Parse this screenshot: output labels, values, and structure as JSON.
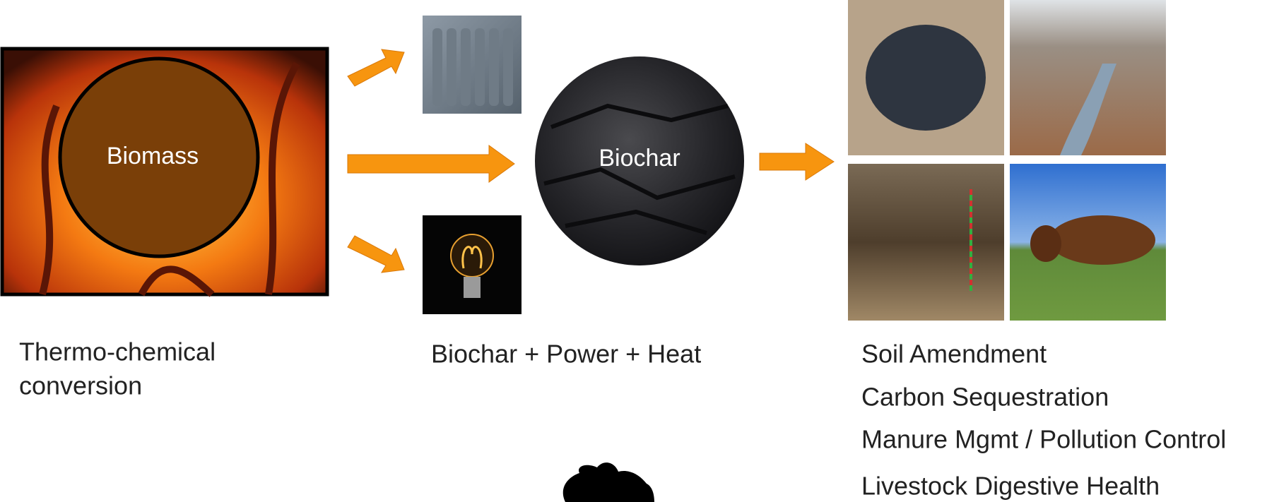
{
  "nodes": [
    {
      "label": "Biomass"
    },
    {
      "label": "Biochar"
    }
  ],
  "captions": {
    "conversion": [
      "Thermo-chemical",
      "conversion"
    ],
    "products": "Biochar + Power + Heat"
  },
  "uses": [
    "Soil Amendment",
    "Carbon Sequestration",
    "Manure Mgmt / Pollution Control",
    "Livestock Digestive Health"
  ]
}
